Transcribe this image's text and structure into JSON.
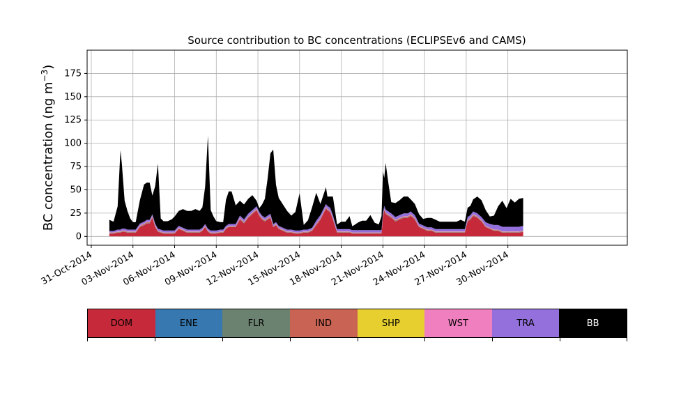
{
  "chart_data": {
    "type": "area",
    "title": "Source contribution to BC concentrations (ECLIPSEv6 and CAMS)",
    "ylabel": "BC concentration (ng m⁻³)",
    "ylabel_text": "BC concentration (ng m",
    "ylabel_unit_exp": "−3",
    "ylabel_close": ")",
    "xlabel": "",
    "ylim": [
      -9.5,
      200
    ],
    "xlim_days": [
      -0.3,
      38.6
    ],
    "grid": true,
    "stacked": true,
    "yticks": [
      0,
      25,
      50,
      75,
      100,
      125,
      150,
      175
    ],
    "xticks": [
      {
        "label": "31-Oct-2014",
        "day": 0
      },
      {
        "label": "03-Nov-2014",
        "day": 3
      },
      {
        "label": "06-Nov-2014",
        "day": 6
      },
      {
        "label": "09-Nov-2014",
        "day": 9
      },
      {
        "label": "12-Nov-2014",
        "day": 12
      },
      {
        "label": "15-Nov-2014",
        "day": 15
      },
      {
        "label": "18-Nov-2014",
        "day": 18
      },
      {
        "label": "21-Nov-2014",
        "day": 21
      },
      {
        "label": "24-Nov-2014",
        "day": 24
      },
      {
        "label": "27-Nov-2014",
        "day": 27
      },
      {
        "label": "30-Nov-2014",
        "day": 30
      }
    ],
    "x_day0_date": "31-Oct-2014",
    "x_day_offsets": [
      1.3,
      1.6,
      1.9,
      2.1,
      2.2,
      2.4,
      2.6,
      2.8,
      3.0,
      3.2,
      3.5,
      3.8,
      4.0,
      4.2,
      4.4,
      4.6,
      4.8,
      5.0,
      5.2,
      5.5,
      5.8,
      6.0,
      6.3,
      6.6,
      6.9,
      7.2,
      7.5,
      7.8,
      8.0,
      8.2,
      8.4,
      8.6,
      8.8,
      9.0,
      9.3,
      9.5,
      9.7,
      9.9,
      10.1,
      10.4,
      10.7,
      11.0,
      11.3,
      11.6,
      11.9,
      12.1,
      12.3,
      12.5,
      12.7,
      12.9,
      13.1,
      13.3,
      13.5,
      13.8,
      14.1,
      14.4,
      14.7,
      15.0,
      15.3,
      15.6,
      15.9,
      16.2,
      16.5,
      16.7,
      16.9,
      17.0,
      17.2,
      17.4,
      17.7,
      18.0,
      18.3,
      18.6,
      18.8,
      19.0,
      19.2,
      19.5,
      19.8,
      20.1,
      20.4,
      20.7,
      20.9,
      21.0,
      21.1,
      21.2,
      21.4,
      21.6,
      21.9,
      22.2,
      22.5,
      22.8,
      23.0,
      23.3,
      23.6,
      23.9,
      24.2,
      24.5,
      24.8,
      25.1,
      25.4,
      25.7,
      26.0,
      26.3,
      26.6,
      26.9,
      27.1,
      27.3,
      27.5,
      27.8,
      28.1,
      28.4,
      28.7,
      29.0,
      29.3,
      29.6,
      29.9,
      30.2,
      30.5,
      30.8,
      31.1
    ],
    "series": [
      {
        "name": "DOM",
        "color": "#c62a3a",
        "values": [
          3,
          3,
          4,
          4,
          5,
          5,
          4,
          4,
          4,
          4,
          10,
          12,
          14,
          14,
          20,
          10,
          5,
          4,
          3,
          3,
          3,
          3,
          8,
          6,
          4,
          4,
          4,
          4,
          6,
          10,
          5,
          3,
          3,
          3,
          4,
          4,
          8,
          10,
          10,
          10,
          18,
          14,
          20,
          24,
          28,
          22,
          18,
          16,
          18,
          20,
          10,
          12,
          8,
          6,
          4,
          4,
          3,
          3,
          4,
          4,
          6,
          12,
          18,
          24,
          30,
          28,
          26,
          18,
          4,
          4,
          4,
          4,
          3,
          3,
          3,
          3,
          3,
          3,
          3,
          3,
          3,
          20,
          28,
          24,
          22,
          20,
          16,
          18,
          20,
          20,
          22,
          18,
          10,
          8,
          6,
          6,
          4,
          4,
          4,
          4,
          4,
          4,
          4,
          4,
          16,
          18,
          22,
          20,
          16,
          10,
          8,
          6,
          6,
          4,
          4,
          4,
          4,
          4,
          5,
          5,
          4
        ]
      },
      {
        "name": "ENE",
        "color": "#3778b0",
        "values": [
          0.2,
          0.2,
          0.2,
          0.2,
          0.2,
          0.2,
          0.2,
          0.2,
          0.2,
          0.2,
          0.3,
          0.3,
          0.3,
          0.3,
          0.3,
          0.3,
          0.2,
          0.2,
          0.2,
          0.2,
          0.2,
          0.2,
          0.2,
          0.2,
          0.2,
          0.2,
          0.2,
          0.2,
          0.2,
          0.2,
          0.2,
          0.2,
          0.2,
          0.2,
          0.2,
          0.2,
          0.2,
          0.2,
          0.2,
          0.2,
          0.3,
          0.3,
          0.3,
          0.3,
          0.3,
          0.3,
          0.3,
          0.3,
          0.3,
          0.3,
          0.2,
          0.2,
          0.2,
          0.2,
          0.2,
          0.2,
          0.2,
          0.2,
          0.2,
          0.2,
          0.2,
          0.3,
          0.3,
          0.3,
          0.3,
          0.3,
          0.3,
          0.3,
          0.2,
          0.2,
          0.2,
          0.2,
          0.2,
          0.2,
          0.2,
          0.2,
          0.2,
          0.2,
          0.2,
          0.2,
          0.2,
          0.3,
          0.3,
          0.3,
          0.3,
          0.3,
          0.3,
          0.3,
          0.3,
          0.3,
          0.3,
          0.3,
          0.2,
          0.2,
          0.2,
          0.2,
          0.2,
          0.2,
          0.2,
          0.2,
          0.2,
          0.2,
          0.2,
          0.2,
          0.3,
          0.3,
          0.3,
          0.3,
          0.3,
          0.2,
          0.2,
          0.2,
          0.2,
          0.2,
          0.2,
          0.2,
          0.2,
          0.2,
          0.2,
          0.2,
          0.2
        ]
      },
      {
        "name": "FLR",
        "color": "#6c8270",
        "values": [
          0.2,
          0.2,
          0.2,
          0.2,
          0.2,
          0.2,
          0.2,
          0.2,
          0.2,
          0.2,
          0.2,
          0.2,
          0.2,
          0.2,
          0.2,
          0.2,
          0.2,
          0.2,
          0.2,
          0.2,
          0.2,
          0.2,
          0.2,
          0.2,
          0.2,
          0.2,
          0.2,
          0.2,
          0.2,
          0.2,
          0.2,
          0.2,
          0.2,
          0.2,
          0.2,
          0.2,
          0.2,
          0.2,
          0.2,
          0.2,
          0.2,
          0.2,
          0.2,
          0.2,
          0.2,
          0.2,
          0.2,
          0.2,
          0.2,
          0.2,
          0.2,
          0.2,
          0.2,
          0.2,
          0.2,
          0.2,
          0.2,
          0.2,
          0.2,
          0.2,
          0.2,
          0.2,
          0.2,
          0.2,
          0.2,
          0.2,
          0.2,
          0.2,
          0.2,
          0.2,
          0.2,
          0.2,
          0.2,
          0.2,
          0.2,
          0.2,
          0.2,
          0.2,
          0.2,
          0.2,
          0.2,
          0.2,
          0.2,
          0.2,
          0.2,
          0.2,
          0.2,
          0.2,
          0.2,
          0.2,
          0.2,
          0.2,
          0.2,
          0.2,
          0.2,
          0.2,
          0.2,
          0.2,
          0.2,
          0.2,
          0.2,
          0.2,
          0.2,
          0.2,
          0.2,
          0.2,
          0.2,
          0.2,
          0.2,
          0.2,
          0.2,
          0.2,
          0.2,
          0.2,
          0.2,
          0.2,
          0.2,
          0.2,
          0.2,
          0.2,
          0.2
        ]
      },
      {
        "name": "IND",
        "color": "#c96353",
        "values": [
          0.5,
          0.5,
          0.5,
          0.5,
          0.5,
          0.5,
          0.5,
          0.5,
          0.5,
          0.5,
          0.8,
          0.8,
          0.8,
          0.8,
          0.8,
          0.8,
          0.5,
          0.5,
          0.5,
          0.5,
          0.5,
          0.5,
          0.5,
          0.5,
          0.5,
          0.5,
          0.5,
          0.5,
          0.5,
          0.5,
          0.5,
          0.5,
          0.5,
          0.5,
          0.5,
          0.5,
          0.5,
          0.5,
          0.5,
          0.5,
          0.8,
          0.8,
          0.8,
          0.8,
          0.8,
          0.8,
          0.8,
          0.8,
          0.8,
          0.8,
          0.5,
          0.5,
          0.5,
          0.5,
          0.5,
          0.5,
          0.5,
          0.5,
          0.5,
          0.5,
          0.5,
          0.8,
          0.8,
          0.8,
          0.8,
          0.8,
          0.8,
          0.8,
          0.5,
          0.5,
          0.5,
          0.5,
          0.5,
          0.5,
          0.5,
          0.5,
          0.5,
          0.5,
          0.5,
          0.5,
          0.5,
          0.8,
          0.8,
          0.8,
          0.8,
          0.8,
          0.8,
          0.8,
          0.8,
          0.8,
          0.8,
          0.8,
          0.5,
          0.5,
          0.5,
          0.5,
          0.5,
          0.5,
          0.5,
          0.5,
          0.5,
          0.5,
          0.5,
          0.5,
          0.8,
          0.8,
          0.8,
          0.8,
          0.8,
          0.5,
          0.5,
          0.5,
          0.5,
          0.5,
          0.5,
          0.5,
          0.5,
          0.5,
          0.5,
          0.5,
          0.5
        ]
      },
      {
        "name": "SHP",
        "color": "#e6cf2f",
        "values": [
          0.1,
          0.1,
          0.1,
          0.1,
          0.1,
          0.1,
          0.1,
          0.1,
          0.1,
          0.1,
          0.1,
          0.1,
          0.1,
          0.1,
          0.1,
          0.1,
          0.1,
          0.1,
          0.1,
          0.1,
          0.1,
          0.1,
          0.1,
          0.1,
          0.1,
          0.1,
          0.1,
          0.1,
          0.1,
          0.1,
          0.1,
          0.1,
          0.1,
          0.1,
          0.1,
          0.1,
          0.1,
          0.1,
          0.1,
          0.1,
          0.1,
          0.1,
          0.1,
          0.1,
          0.1,
          0.1,
          0.1,
          0.1,
          0.1,
          0.1,
          0.1,
          0.1,
          0.1,
          0.1,
          0.1,
          0.1,
          0.1,
          0.1,
          0.1,
          0.1,
          0.1,
          0.1,
          0.1,
          0.1,
          0.1,
          0.1,
          0.1,
          0.1,
          0.1,
          0.1,
          0.1,
          0.1,
          0.1,
          0.1,
          0.1,
          0.1,
          0.1,
          0.1,
          0.1,
          0.1,
          0.1,
          0.1,
          0.1,
          0.1,
          0.1,
          0.1,
          0.1,
          0.1,
          0.1,
          0.1,
          0.1,
          0.1,
          0.1,
          0.1,
          0.1,
          0.1,
          0.1,
          0.1,
          0.1,
          0.1,
          0.1,
          0.1,
          0.1,
          0.1,
          0.1,
          0.1,
          0.1,
          0.1,
          0.1,
          0.1,
          0.1,
          0.1,
          0.1,
          0.1,
          0.1,
          0.1,
          0.1,
          0.1,
          0.1,
          0.1,
          0.1
        ]
      },
      {
        "name": "WST",
        "color": "#f07fbf",
        "values": [
          0.3,
          0.3,
          0.3,
          0.3,
          0.3,
          0.3,
          0.3,
          0.3,
          0.3,
          0.3,
          0.4,
          0.4,
          0.4,
          0.4,
          0.4,
          0.4,
          0.3,
          0.3,
          0.3,
          0.3,
          0.3,
          0.3,
          0.3,
          0.3,
          0.3,
          0.3,
          0.3,
          0.3,
          0.3,
          0.3,
          0.3,
          0.3,
          0.3,
          0.3,
          0.3,
          0.3,
          0.3,
          0.3,
          0.3,
          0.3,
          0.4,
          0.4,
          0.4,
          0.4,
          0.4,
          0.4,
          0.4,
          0.4,
          0.4,
          0.4,
          0.3,
          0.3,
          0.3,
          0.3,
          0.3,
          0.3,
          0.3,
          0.3,
          0.3,
          0.3,
          0.3,
          0.4,
          0.4,
          0.4,
          0.4,
          0.4,
          0.4,
          0.4,
          0.3,
          0.3,
          0.3,
          0.3,
          0.3,
          0.3,
          0.3,
          0.3,
          0.3,
          0.3,
          0.3,
          0.3,
          0.3,
          0.4,
          0.4,
          0.4,
          0.4,
          0.4,
          0.4,
          0.4,
          0.4,
          0.4,
          0.4,
          0.4,
          0.3,
          0.3,
          0.3,
          0.3,
          0.3,
          0.3,
          0.3,
          0.3,
          0.3,
          0.3,
          0.3,
          0.3,
          0.4,
          0.4,
          0.4,
          0.4,
          0.4,
          0.3,
          0.3,
          0.3,
          0.3,
          0.3,
          0.3,
          0.3,
          0.3,
          0.3,
          0.3,
          0.3,
          0.3
        ]
      },
      {
        "name": "TRA",
        "color": "#9370db",
        "values": [
          1.5,
          1.5,
          2,
          2,
          2,
          2,
          2,
          2,
          2,
          2,
          2,
          2,
          2,
          2,
          2,
          2,
          2,
          2,
          2,
          2,
          2,
          2,
          2,
          2,
          2,
          2,
          2,
          2,
          2,
          2,
          2,
          2,
          2,
          2,
          2,
          2,
          2,
          2,
          2,
          2,
          2.5,
          2.5,
          2.5,
          2.5,
          2.5,
          2.5,
          2.5,
          2.5,
          2.5,
          2.5,
          2,
          2,
          2,
          2,
          2,
          2,
          2,
          2,
          2,
          2,
          2,
          3,
          3,
          3,
          3,
          3,
          3,
          3,
          2.5,
          2.5,
          2.5,
          2.5,
          2.5,
          2.5,
          2.5,
          2.5,
          2.5,
          2.5,
          2.5,
          2.5,
          2.5,
          3,
          3,
          3,
          3,
          3,
          3,
          3,
          3,
          3,
          3,
          3,
          2.5,
          2.5,
          2.5,
          2.5,
          2.5,
          2.5,
          2.5,
          2.5,
          2.5,
          2.5,
          2.5,
          2.5,
          3,
          3,
          3,
          3,
          3,
          4,
          4,
          5,
          5,
          5,
          5,
          5,
          5,
          5,
          5,
          5,
          5
        ]
      },
      {
        "name": "BB",
        "color": "#000000",
        "values": [
          12,
          10,
          25,
          85,
          70,
          30,
          20,
          12,
          8,
          8,
          25,
          40,
          40,
          40,
          20,
          40,
          70,
          12,
          10,
          10,
          12,
          15,
          16,
          20,
          20,
          20,
          22,
          20,
          22,
          40,
          100,
          22,
          15,
          10,
          8,
          8,
          28,
          35,
          35,
          20,
          16,
          16,
          16,
          16,
          6,
          4,
          12,
          20,
          40,
          65,
          80,
          40,
          30,
          25,
          20,
          15,
          20,
          40,
          5,
          10,
          22,
          30,
          12,
          15,
          18,
          10,
          12,
          20,
          5,
          8,
          8,
          14,
          4,
          6,
          8,
          10,
          10,
          16,
          8,
          6,
          15,
          45,
          30,
          50,
          30,
          12,
          15,
          16,
          18,
          18,
          13,
          12,
          10,
          7,
          10,
          10,
          10,
          8,
          8,
          8,
          8,
          8,
          10,
          8,
          10,
          10,
          13,
          18,
          18,
          13,
          8,
          10,
          20,
          28,
          20,
          30,
          26,
          30,
          30,
          33,
          38
        ]
      }
    ]
  },
  "legend": {
    "items": [
      {
        "label": "DOM",
        "color": "#c62a3a"
      },
      {
        "label": "ENE",
        "color": "#3778b0"
      },
      {
        "label": "FLR",
        "color": "#6c8270"
      },
      {
        "label": "IND",
        "color": "#c96353"
      },
      {
        "label": "SHP",
        "color": "#e6cf2f"
      },
      {
        "label": "WST",
        "color": "#f07fbf"
      },
      {
        "label": "TRA",
        "color": "#9370db"
      },
      {
        "label": "BB",
        "color": "#000000"
      }
    ]
  }
}
